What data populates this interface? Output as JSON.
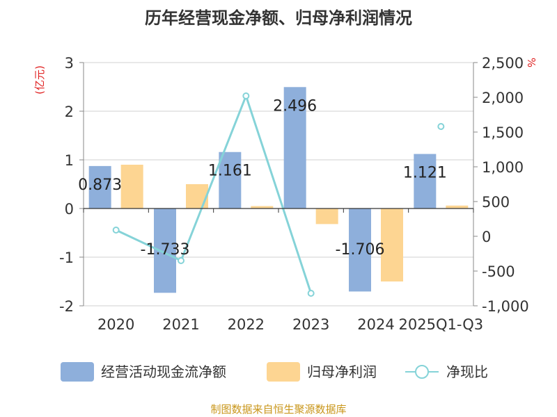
{
  "chart_data": {
    "type": "bar",
    "title": "历年经营现金净额、归母净利润情况",
    "categories": [
      "2020",
      "2021",
      "2022",
      "2023",
      "2024",
      "2025Q1-Q3"
    ],
    "y_left": {
      "label": "(亿元)",
      "min": -2,
      "max": 3,
      "ticks": [
        -2,
        -1,
        0,
        1,
        2,
        3
      ]
    },
    "y_right": {
      "label": "%",
      "min": -1000,
      "max": 2500,
      "ticks": [
        -1000,
        -500,
        0,
        500,
        1000,
        1500,
        2000,
        2500
      ],
      "tick_labels": [
        "-1,000",
        "-500",
        "0",
        "500",
        "1,000",
        "1,500",
        "2,000",
        "2,500"
      ]
    },
    "series": [
      {
        "name": "经营活动现金流净额",
        "axis": "left",
        "kind": "bar",
        "color": "#8eafdb",
        "values": [
          0.873,
          -1.733,
          1.161,
          2.496,
          -1.706,
          1.121
        ],
        "labels": [
          "0.873",
          "-1.733",
          "1.161",
          "2.496",
          "-1.706",
          "1.121"
        ]
      },
      {
        "name": "归母净利润",
        "axis": "left",
        "kind": "bar",
        "color": "#fdd592",
        "values": [
          0.9,
          0.5,
          0.05,
          -0.32,
          -1.5,
          0.06
        ]
      },
      {
        "name": "净现比",
        "axis": "right",
        "kind": "line",
        "color": "#85d3d8",
        "values": [
          90,
          -350,
          2020,
          -820,
          null,
          1580
        ]
      }
    ],
    "source": "制图数据来自恒生聚源数据库"
  }
}
